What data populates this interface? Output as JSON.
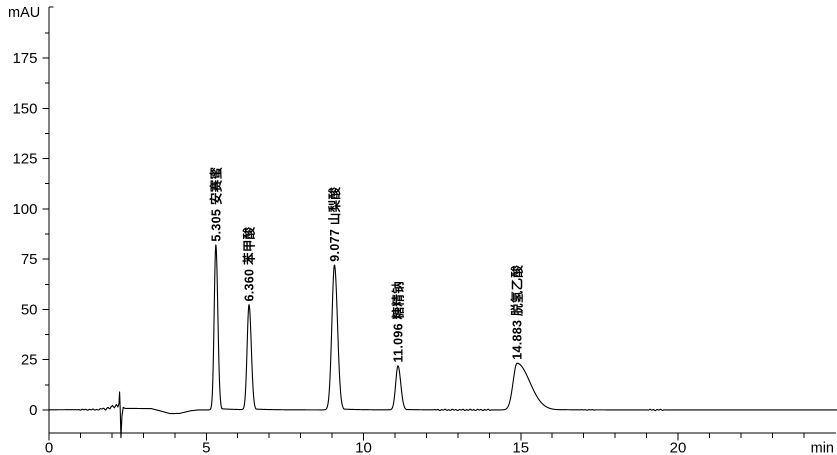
{
  "window": {
    "background": "#ffffff"
  },
  "chart_data": {
    "type": "line",
    "title": "",
    "ylabel": "mAU",
    "xlabel": "min",
    "line_color": "#000000",
    "axis_color": "#000000",
    "background": "#ffffff",
    "grid": false,
    "legend": false,
    "x_axis": {
      "min": 0,
      "max": 25.1,
      "labeled_ticks": [
        0,
        5,
        10,
        15,
        20
      ],
      "minor_tick_step": 1,
      "last_tick": 24,
      "unit": "min"
    },
    "y_axis": {
      "min": -14,
      "max": 200,
      "labeled_ticks": [
        0,
        25,
        50,
        75,
        100,
        125,
        150,
        175
      ],
      "minor_tick_step": 12.5,
      "top_minor_tick": 187.5,
      "unit": "mAU"
    },
    "peaks": [
      {
        "rt_min": 5.305,
        "time_label": "5.305",
        "name": "安赛蜜",
        "apex_mAU": 82.0,
        "sigma_left_min": 0.052,
        "sigma_right_min": 0.062,
        "tail_coef": 0.01
      },
      {
        "rt_min": 6.36,
        "time_label": "6.360",
        "name": "苯甲酸",
        "apex_mAU": 52.2,
        "sigma_left_min": 0.06,
        "sigma_right_min": 0.072,
        "tail_coef": 0.01
      },
      {
        "rt_min": 9.077,
        "time_label": "9.077",
        "name": "山梨酸",
        "apex_mAU": 72.0,
        "sigma_left_min": 0.082,
        "sigma_right_min": 0.095,
        "tail_coef": 0.01
      },
      {
        "rt_min": 11.096,
        "time_label": "11.096",
        "name": "糖精钠",
        "apex_mAU": 21.9,
        "sigma_left_min": 0.072,
        "sigma_right_min": 0.088,
        "tail_coef": 0.014
      },
      {
        "rt_min": 14.883,
        "time_label": "14.883",
        "name": "脱氢乙酸",
        "apex_mAU": 23.2,
        "sigma_left_min": 0.125,
        "sigma_right_min": 0.4,
        "tail_coef": 0.085
      }
    ],
    "baseline_keypoints": [
      [
        0,
        0.1
      ],
      [
        0.8,
        0.15
      ],
      [
        1.6,
        0.2
      ],
      [
        1.72,
        0.8
      ],
      [
        1.8,
        0.3
      ],
      [
        1.88,
        1.2
      ],
      [
        1.94,
        0.5
      ],
      [
        2.02,
        2.5
      ],
      [
        2.08,
        1.0
      ],
      [
        2.14,
        2.8
      ],
      [
        2.19,
        1.5
      ],
      [
        2.225,
        3.2
      ],
      [
        2.245,
        9.0
      ],
      [
        2.267,
        -1.0
      ],
      [
        2.287,
        -13.7
      ],
      [
        2.32,
        -3.0
      ],
      [
        2.36,
        1.3
      ],
      [
        2.42,
        0.8
      ],
      [
        3.25,
        0.7
      ],
      [
        3.55,
        -0.5
      ],
      [
        3.85,
        -1.8
      ],
      [
        4.15,
        -1.7
      ],
      [
        4.5,
        -0.4
      ],
      [
        4.75,
        0.05
      ],
      [
        25.06,
        0.05
      ]
    ],
    "baseline_events": [
      {
        "type": "noise",
        "from_min": 0.85,
        "to_min": 2.2,
        "amplitude_mAU": 0.25
      },
      {
        "type": "injection_disturbance",
        "at_min": 2.27,
        "up_mAU": 9.0,
        "down_mAU": -13.7
      },
      {
        "type": "dip",
        "from_min": 3.3,
        "to_min": 4.7,
        "depth_mAU": -1.8
      },
      {
        "type": "noise",
        "from_min": 12.2,
        "to_min": 14.15,
        "amplitude_mAU": 0.3
      },
      {
        "type": "noise",
        "from_min": 16.9,
        "to_min": 17.4,
        "amplitude_mAU": 0.15
      },
      {
        "type": "noise",
        "from_min": 19.0,
        "to_min": 19.6,
        "amplitude_mAU": 0.3
      }
    ]
  }
}
